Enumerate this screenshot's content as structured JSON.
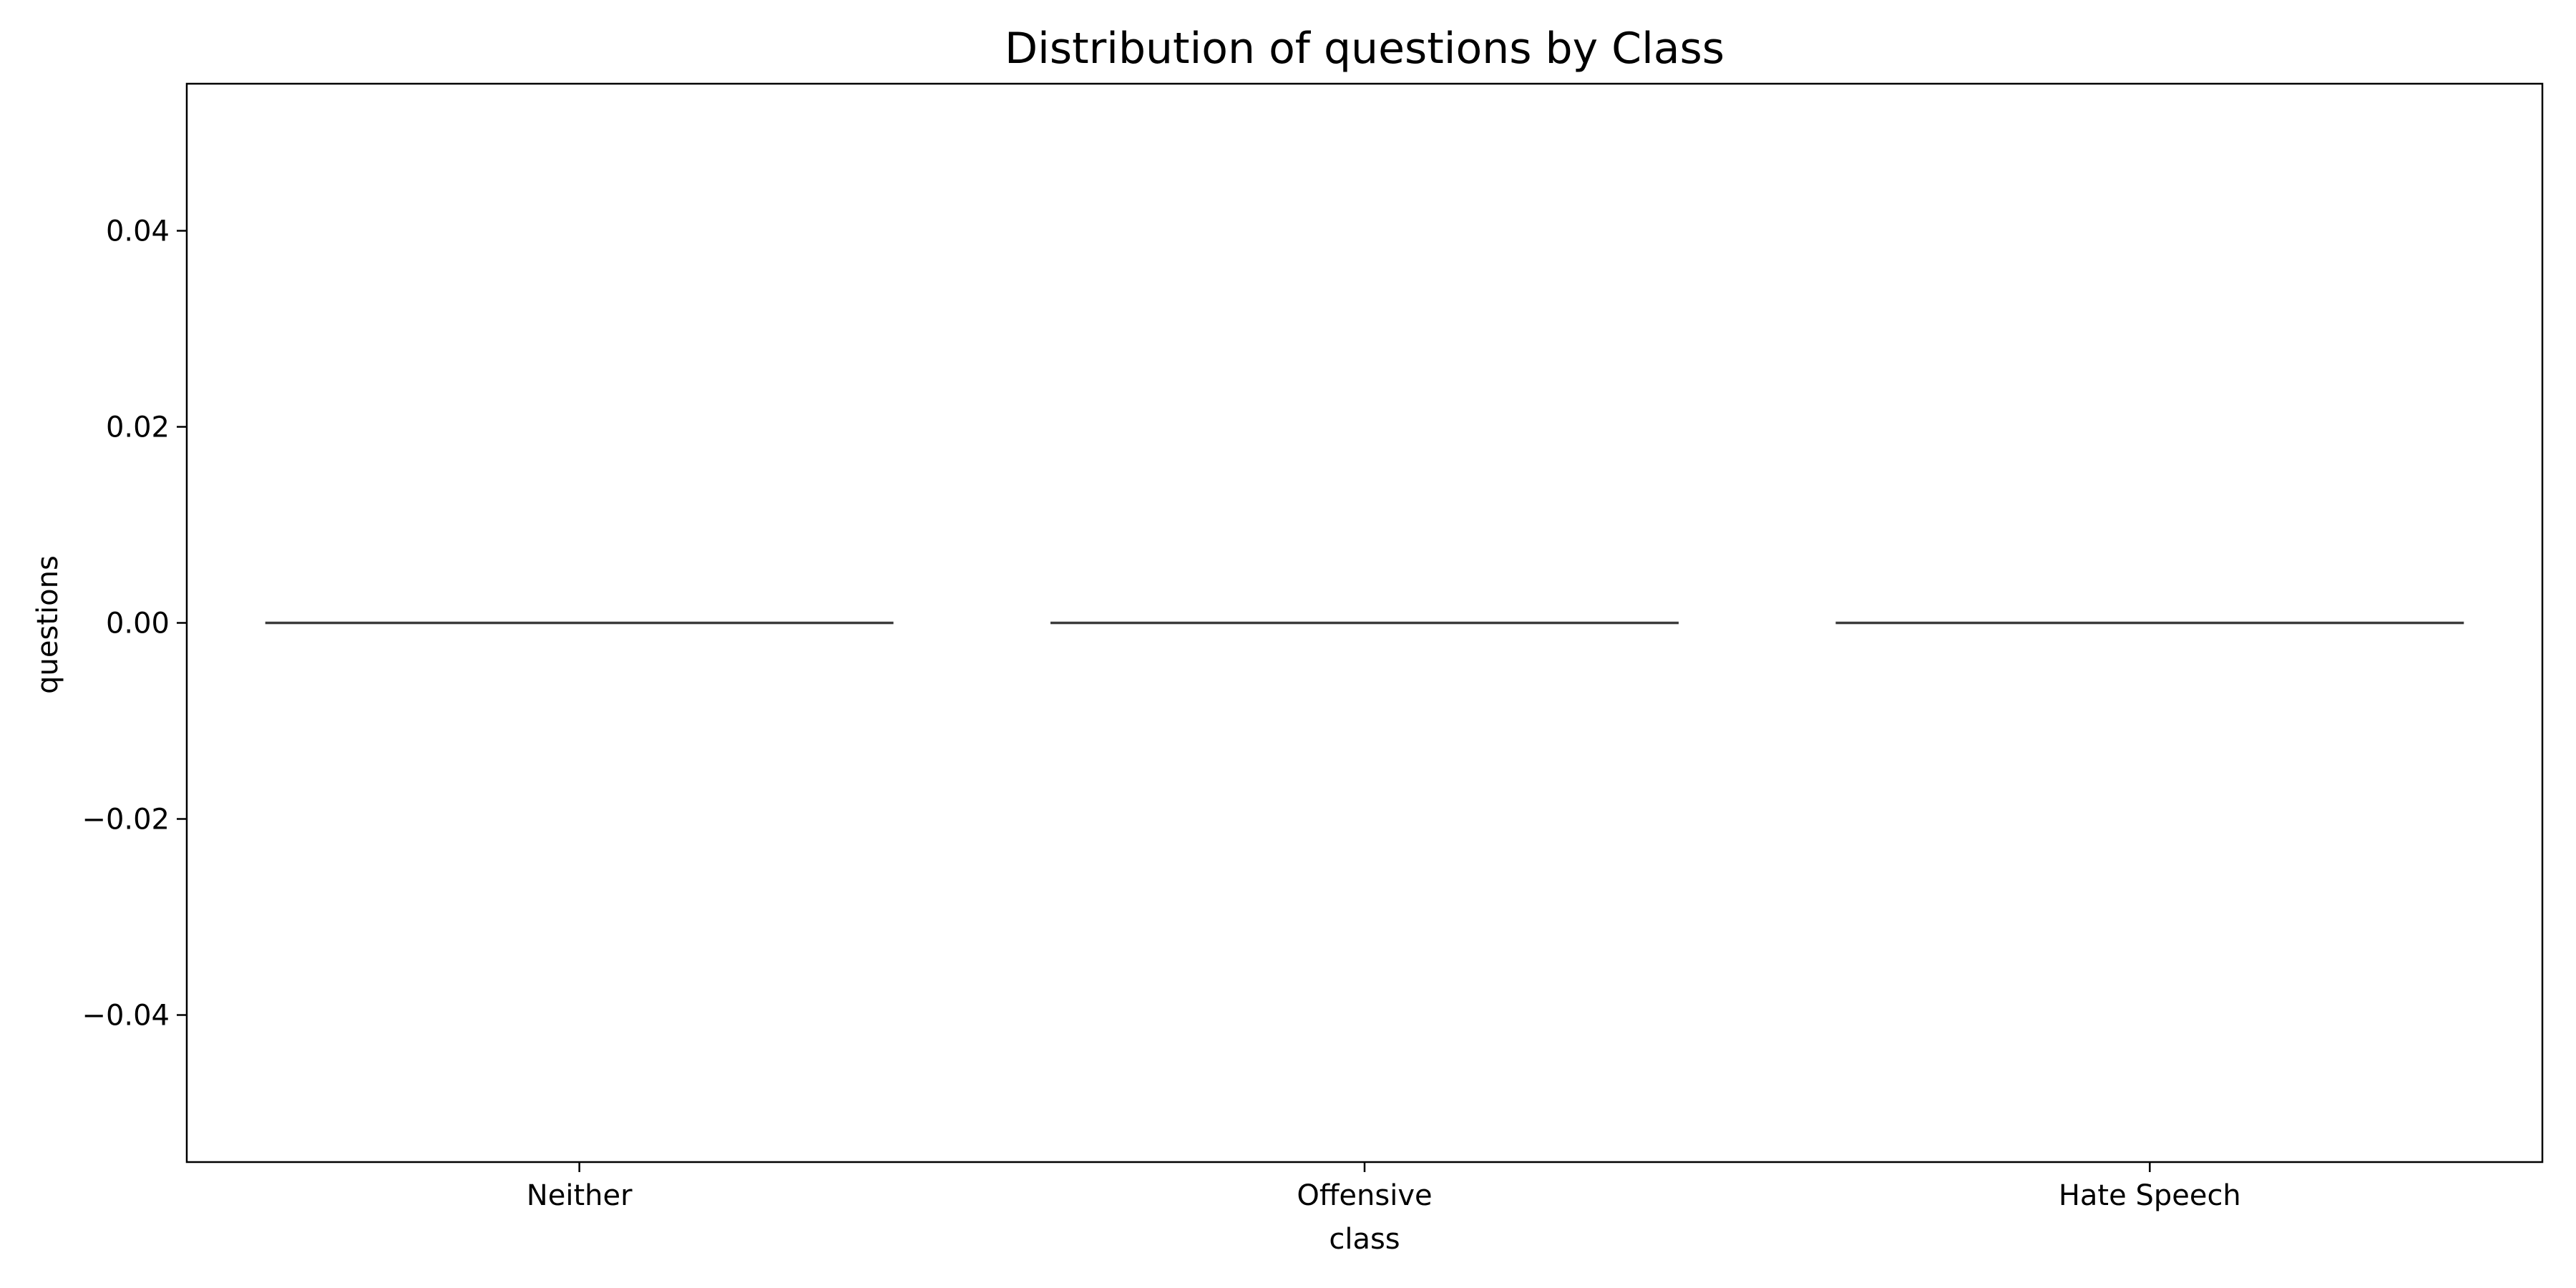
{
  "chart_data": {
    "type": "box",
    "title": "Distribution of questions by Class",
    "xlabel": "class",
    "ylabel": "questions",
    "categories": [
      "Neither",
      "Offensive",
      "Hate Speech"
    ],
    "series": [
      {
        "values": [
          0,
          0,
          0
        ]
      }
    ],
    "ylim": [
      -0.055,
      0.055
    ],
    "yticks": [
      -0.04,
      -0.02,
      0.0,
      0.02,
      0.04
    ],
    "ytick_labels": [
      "−0.04",
      "−0.02",
      "0.00",
      "0.02",
      "0.04"
    ],
    "grid": false,
    "legend": "none",
    "colors": {
      "median_line": "#3b3b3b",
      "axes": "#000000",
      "background": "#ffffff"
    }
  }
}
